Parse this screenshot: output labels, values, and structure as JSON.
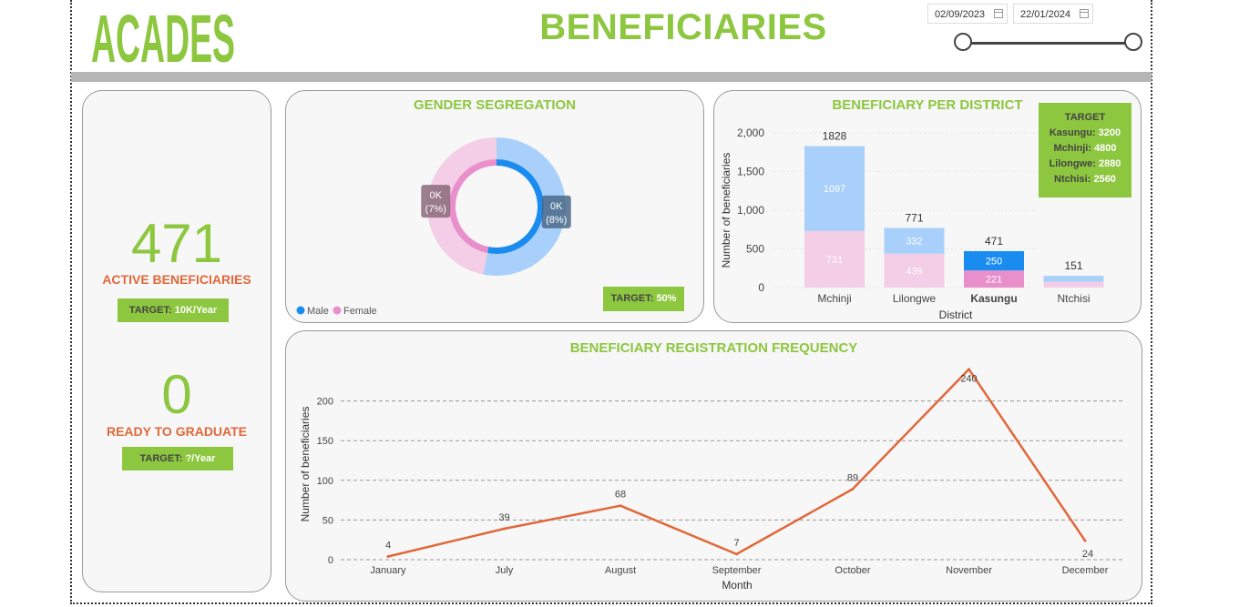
{
  "header": {
    "logo_text": "ACADES",
    "title": "BENEFICIARIES",
    "date_start": "02/09/2023",
    "date_end": "22/01/2024"
  },
  "kpis": {
    "active": {
      "value": "471",
      "label": "ACTIVE BENEFICIARIES",
      "target_label": "TARGET:",
      "target_value": "10K/Year"
    },
    "graduate": {
      "value": "0",
      "label": "READY TO GRADUATE",
      "target_label": "TARGET:",
      "target_value": "?/Year"
    }
  },
  "gender": {
    "title": "GENDER SEGREGATION",
    "target_label": "TARGET:",
    "target_value": "50%",
    "legend": [
      {
        "name": "Male",
        "color": "#1a8cf0"
      },
      {
        "name": "Female",
        "color": "#e98fcb"
      }
    ]
  },
  "district_target": {
    "title": "TARGET",
    "items": [
      {
        "name": "Kasungu:",
        "value": "3200"
      },
      {
        "name": "Mchinji:",
        "value": "4800"
      },
      {
        "name": "Lilongwe:",
        "value": "2880"
      },
      {
        "name": "Ntchisi:",
        "value": "2560"
      }
    ]
  },
  "chart_data": [
    {
      "type": "pie",
      "title": "GENDER SEGREGATION",
      "variant": "donut",
      "outer_slices": [
        {
          "name": "Male",
          "value": 250,
          "color": "#a8d0fa"
        },
        {
          "name": "Female",
          "value": 221,
          "color": "#f4cde6"
        }
      ],
      "inner_slices": [
        {
          "name": "Male",
          "value": 250,
          "color": "#1a8cf0"
        },
        {
          "name": "Female",
          "value": 221,
          "color": "#e98fcb"
        }
      ],
      "data_labels": [
        {
          "line1": "0K",
          "line2": "(8%)"
        },
        {
          "line1": "0K",
          "line2": "(7%)"
        }
      ]
    },
    {
      "type": "bar",
      "stacked": true,
      "title": "BENEFICIARY PER DISTRICT",
      "xlabel": "District",
      "ylabel": "Number of beneficiaries",
      "ylim": [
        0,
        2000
      ],
      "yticks": [
        0,
        500,
        1000,
        1500,
        2000
      ],
      "ytick_labels": [
        "0",
        "500",
        "1,000",
        "1,500",
        "2,000"
      ],
      "categories": [
        "Mchinji",
        "Lilongwe",
        "Kasungu",
        "Ntchisi"
      ],
      "highlighted": "Kasungu",
      "series": [
        {
          "name": "Female",
          "values": [
            731,
            439,
            221,
            75
          ],
          "color": "#f4cde6",
          "highlight_color": "#e98fcb",
          "labels": [
            "731",
            "439",
            "221",
            ""
          ]
        },
        {
          "name": "Male",
          "values": [
            1097,
            332,
            250,
            76
          ],
          "color": "#a8d0fa",
          "highlight_color": "#1a8cf0",
          "labels": [
            "1097",
            "332",
            "250",
            ""
          ]
        }
      ],
      "totals": [
        1828,
        771,
        471,
        151
      ]
    },
    {
      "type": "line",
      "title": "BENEFICIARY REGISTRATION FREQUENCY",
      "xlabel": "Month",
      "ylabel": "Number of beneficiaries",
      "ylim": [
        0,
        250
      ],
      "yticks": [
        0,
        50,
        100,
        150,
        200
      ],
      "grid": true,
      "x": [
        "January",
        "July",
        "August",
        "September",
        "October",
        "November",
        "December"
      ],
      "series": [
        {
          "values": [
            4,
            39,
            68,
            7,
            89,
            240,
            24
          ],
          "color": "#e0683a"
        }
      ]
    }
  ]
}
